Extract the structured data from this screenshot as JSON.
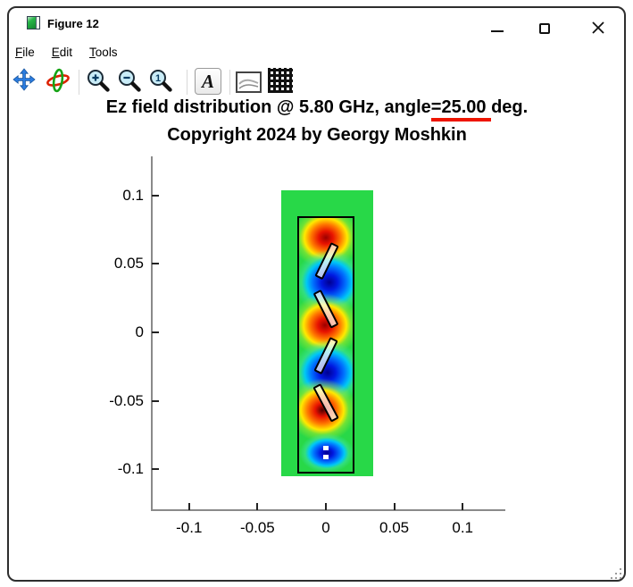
{
  "window": {
    "title": "Figure 12",
    "controls": [
      {
        "name": "minimize-button",
        "icon": "minimize-icon"
      },
      {
        "name": "maximize-button",
        "icon": "maximize-icon"
      },
      {
        "name": "close-button",
        "icon": "close-icon"
      }
    ]
  },
  "menu": {
    "items": [
      {
        "label": "File"
      },
      {
        "label": "Edit"
      },
      {
        "label": "Tools"
      }
    ]
  },
  "toolbar": {
    "buttons": [
      {
        "name": "pan-button",
        "icon": "pan-arrows-icon"
      },
      {
        "name": "rotate-3d-button",
        "icon": "rotate-3d-icon"
      },
      {
        "name": "zoom-in-button",
        "icon": "zoom-in-icon"
      },
      {
        "name": "zoom-out-button",
        "icon": "zoom-out-icon"
      },
      {
        "name": "zoom-reset-button",
        "icon": "zoom-reset-icon"
      },
      {
        "name": "text-style-button",
        "icon": "letter-a-icon",
        "glyph": "A"
      },
      {
        "name": "axes-style-button",
        "icon": "curves-icon"
      },
      {
        "name": "grid-toggle-button",
        "icon": "grid-icon"
      }
    ]
  },
  "figure": {
    "title_prefix": "Ez field distribution @ 5.80 GHz, angle",
    "title_highlight": "=25.00 ",
    "title_suffix": "deg.",
    "subtitle": "Copyright 2024 by Georgy Moshkin",
    "underline_color": "#ee1500"
  },
  "colors": {
    "domain_green": "#28d848",
    "positive_stops": [
      [
        "#9b0000",
        "0%"
      ],
      [
        "#e81300",
        "20%"
      ],
      [
        "#ff7a00",
        "42%"
      ],
      [
        "#ffe900",
        "60%"
      ],
      [
        "rgba(170,235,40,0.55)",
        "74%"
      ],
      [
        "rgba(40,216,72,0)",
        "96%"
      ]
    ],
    "negative_stops": [
      [
        "#000090",
        "0%"
      ],
      [
        "#0018e0",
        "22%"
      ],
      [
        "#0077ff",
        "46%"
      ],
      [
        "#00c8f5",
        "62%"
      ],
      [
        "rgba(60,230,180,0.5)",
        "76%"
      ],
      [
        "rgba(40,216,72,0)",
        "96%"
      ]
    ]
  },
  "chart_data": {
    "type": "heatmap",
    "title": "Ez field distribution @ 5.80 GHz, angle=25.00 deg.",
    "subtitle": "Copyright 2024 by Georgy Moshkin",
    "xlabel": "",
    "ylabel": "",
    "xlim": [
      -0.128,
      0.131
    ],
    "ylim": [
      -0.13,
      0.129
    ],
    "grid": false,
    "colormap": "jet",
    "x_ticks": [
      {
        "v": -0.1,
        "label": "-0.1"
      },
      {
        "v": -0.05,
        "label": "-0.05"
      },
      {
        "v": 0,
        "label": "0"
      },
      {
        "v": 0.05,
        "label": "0.05"
      },
      {
        "v": 0.1,
        "label": "0.1"
      }
    ],
    "y_ticks": [
      {
        "v": 0.1,
        "label": "0.1"
      },
      {
        "v": 0.05,
        "label": "0.05"
      },
      {
        "v": 0,
        "label": "0"
      },
      {
        "v": -0.05,
        "label": "-0.05"
      },
      {
        "v": -0.1,
        "label": "-0.1"
      }
    ],
    "simulation_domain": {
      "x_min": -0.0326,
      "x_max": 0.0346,
      "y_min": -0.1051,
      "y_max": 0.1038
    },
    "antenna_outline": {
      "x_min": -0.0209,
      "x_max": 0.0209,
      "y_min": -0.1031,
      "y_max": 0.0849
    },
    "field_lobes": [
      {
        "x": 0.0,
        "y": 0.0692,
        "sign": "positive",
        "rx": 0.0261,
        "ry": 0.0235
      },
      {
        "x": 0.0026,
        "y": 0.0366,
        "sign": "negative",
        "rx": 0.0268,
        "ry": 0.0248
      },
      {
        "x": -0.0007,
        "y": 0.0052,
        "sign": "positive",
        "rx": 0.0261,
        "ry": 0.0242
      },
      {
        "x": 0.0013,
        "y": -0.0294,
        "sign": "negative",
        "rx": 0.0268,
        "ry": 0.0248
      },
      {
        "x": -0.0026,
        "y": -0.0568,
        "sign": "positive",
        "rx": 0.0261,
        "ry": 0.0242,
        "core": "#4d0000"
      },
      {
        "x": 0.0007,
        "y": -0.0881,
        "sign": "negative",
        "rx": 0.0209,
        "ry": 0.015
      }
    ],
    "dipole_elements": [
      {
        "x": 0.0007,
        "y": 0.0522,
        "tilt_deg": 26,
        "length": 0.0264,
        "width": 0.0049
      },
      {
        "x": 0.0,
        "y": 0.017,
        "tilt_deg": -27,
        "length": 0.0272,
        "width": 0.0049
      },
      {
        "x": 0.0,
        "y": -0.017,
        "tilt_deg": 26,
        "length": 0.0264,
        "width": 0.0049
      },
      {
        "x": 0.0,
        "y": -0.0516,
        "tilt_deg": -28,
        "length": 0.0272,
        "width": 0.0049
      }
    ],
    "feed_points": [
      {
        "x": 0.0,
        "y": -0.0848
      },
      {
        "x": 0.0,
        "y": -0.0913
      }
    ]
  }
}
